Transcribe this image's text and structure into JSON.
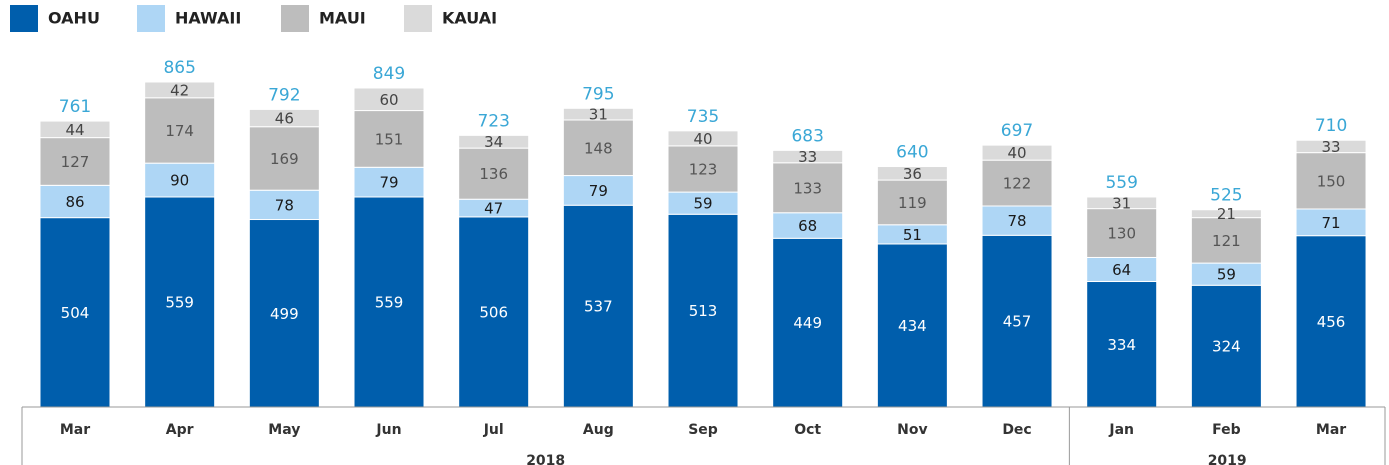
{
  "chart_data": {
    "type": "stacked_bar",
    "categories": [
      "Mar",
      "Apr",
      "May",
      "Jun",
      "Jul",
      "Aug",
      "Sep",
      "Oct",
      "Nov",
      "Dec",
      "Jan",
      "Feb",
      "Mar"
    ],
    "groups": [
      {
        "label": "2018",
        "size": 10
      },
      {
        "label": "2019",
        "size": 3
      }
    ],
    "series": [
      {
        "name": "OAHU",
        "color": "#005eac",
        "values": [
          504,
          559,
          499,
          559,
          506,
          537,
          513,
          449,
          434,
          457,
          334,
          324,
          456
        ]
      },
      {
        "name": "HAWAII",
        "color": "#aed6f5",
        "values": [
          86,
          90,
          78,
          79,
          47,
          79,
          59,
          68,
          51,
          78,
          64,
          59,
          71
        ]
      },
      {
        "name": "MAUI",
        "color": "#bdbdbd",
        "values": [
          127,
          174,
          169,
          151,
          136,
          148,
          123,
          133,
          119,
          122,
          130,
          121,
          150
        ]
      },
      {
        "name": "KAUAI",
        "color": "#dadada",
        "values": [
          44,
          42,
          46,
          60,
          34,
          31,
          40,
          33,
          36,
          40,
          31,
          21,
          33
        ]
      }
    ],
    "totals": [
      761,
      865,
      792,
      849,
      723,
      795,
      735,
      683,
      640,
      697,
      559,
      525,
      710
    ]
  }
}
